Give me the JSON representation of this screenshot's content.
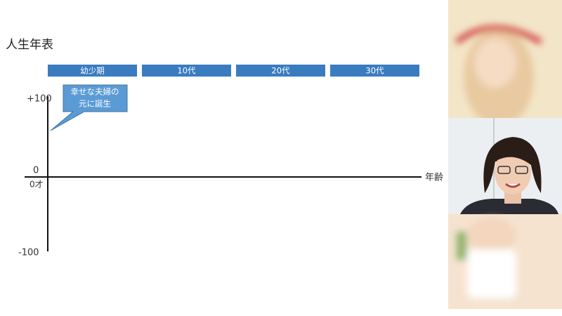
{
  "slide": {
    "title": "人生年表",
    "stages": [
      "幼少期",
      "10代",
      "20代",
      "30代"
    ],
    "y_labels": {
      "top": "+100",
      "zero": "0",
      "bottom": "-100"
    },
    "x_origin_label": "0才",
    "x_axis_label": "年齢",
    "callout": [
      "幸せな夫婦の",
      "元に誕生"
    ]
  }
}
